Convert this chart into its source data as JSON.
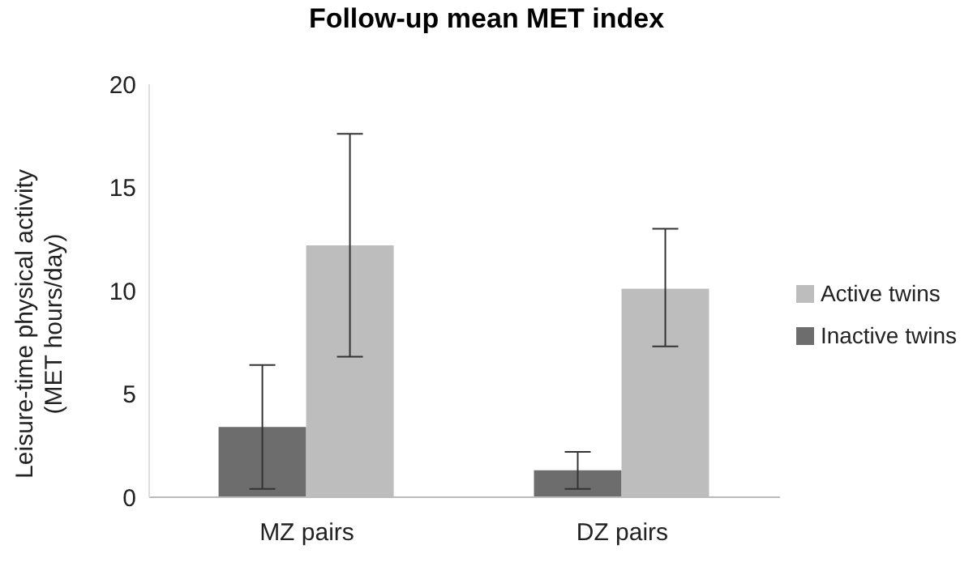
{
  "chart_data": {
    "type": "bar",
    "title": "Follow-up mean MET index",
    "ylabel": "Leisure-time physical activity\n(MET hours/day)",
    "categories": [
      "MZ pairs",
      "DZ pairs"
    ],
    "series": [
      {
        "name": "Inactive twins",
        "color": "#6d6d6d",
        "values": [
          3.4,
          1.3
        ],
        "errors": [
          [
            0.4,
            6.4
          ],
          [
            0.4,
            2.2
          ]
        ]
      },
      {
        "name": "Active twins",
        "color": "#bdbdbd",
        "values": [
          12.2,
          10.1
        ],
        "errors": [
          [
            6.8,
            17.6
          ],
          [
            7.3,
            13.0
          ]
        ]
      }
    ],
    "ylim": [
      0,
      20
    ],
    "yticks": [
      0,
      5,
      10,
      15,
      20
    ],
    "grid": false,
    "legend": "right"
  }
}
